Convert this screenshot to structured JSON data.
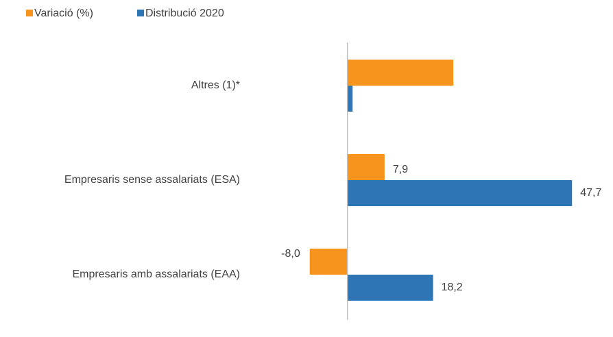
{
  "chart_data": {
    "type": "bar",
    "orientation": "horizontal",
    "categories": [
      "Altres (1)*",
      "Empresaris sense assalariats (ESA)",
      "Empresaris amb assalariats (EAA)"
    ],
    "series": [
      {
        "name": "Variació (%)",
        "color": "#f7941d",
        "values": [
          22.5,
          7.9,
          -8.0
        ],
        "value_labels": [
          null,
          "7,9",
          "-8,0"
        ]
      },
      {
        "name": "Distribució 2020",
        "color": "#2e75b6",
        "values": [
          1.1,
          47.7,
          18.2
        ],
        "value_labels": [
          null,
          "47,7",
          "18,2"
        ]
      }
    ],
    "xlim": [
      -10,
      50
    ],
    "legend": "top-left"
  }
}
